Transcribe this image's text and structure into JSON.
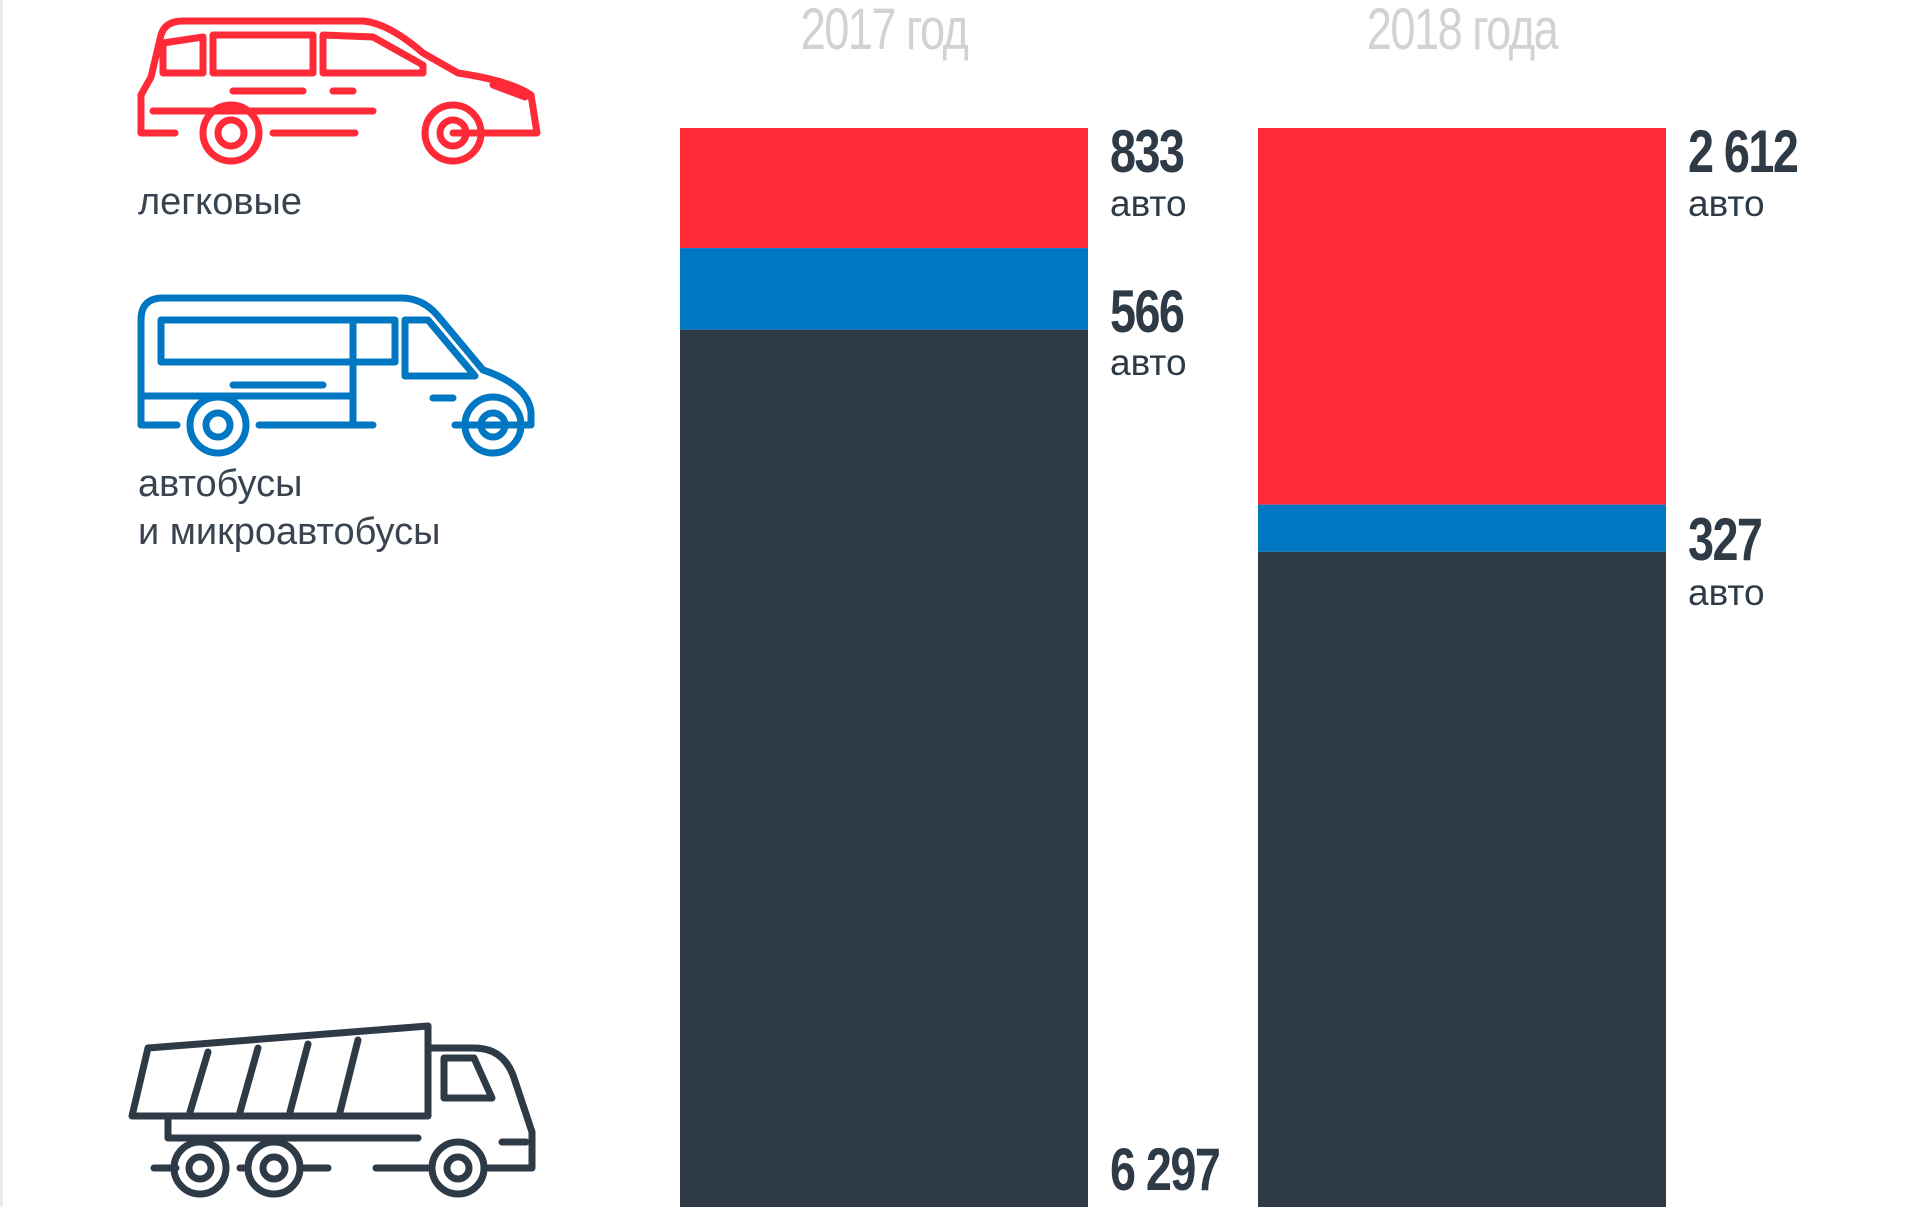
{
  "chart_data": {
    "type": "bar",
    "stacked": true,
    "categories": [
      "2017 год",
      "2018 года"
    ],
    "series": [
      {
        "name": "легковые",
        "color": "#fe2a38",
        "values": [
          833,
          2612
        ],
        "labels": [
          "833",
          "2 612"
        ]
      },
      {
        "name": "автобусы и микроавтобусы",
        "color": "#0077c2",
        "values": [
          566,
          327
        ],
        "labels": [
          "566",
          "327"
        ]
      },
      {
        "name": "",
        "color": "#2f3a47",
        "values": [
          6297,
          null
        ],
        "labels": [
          "6 297",
          ""
        ]
      }
    ],
    "unit": "авто",
    "legend": [
      {
        "icon": "car-icon",
        "label": "легковые",
        "color": "#fe2a38"
      },
      {
        "icon": "bus-icon",
        "label_lines": [
          "автобусы",
          "и микроавтобусы"
        ],
        "color": "#0077c2"
      },
      {
        "icon": "truck-icon",
        "label": "",
        "color": "#2f3a47"
      }
    ],
    "legend_placement": "left"
  }
}
